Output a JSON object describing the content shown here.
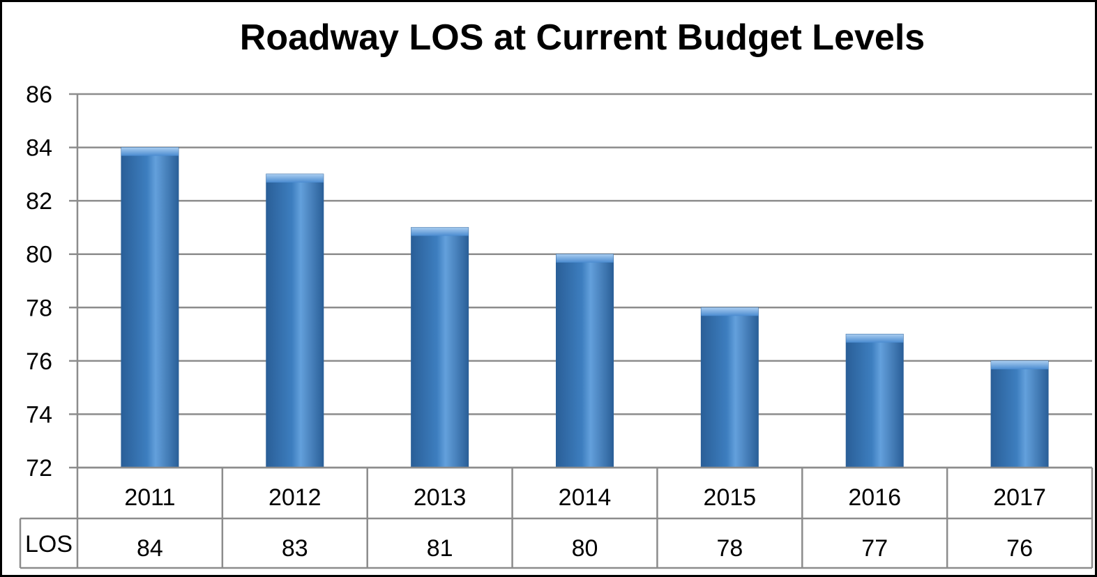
{
  "chart_data": {
    "type": "bar",
    "title": "Roadway LOS at Current Budget Levels",
    "categories": [
      "2011",
      "2012",
      "2013",
      "2014",
      "2015",
      "2016",
      "2017"
    ],
    "series": [
      {
        "name": "LOS",
        "values": [
          84,
          83,
          81,
          80,
          78,
          77,
          76
        ]
      }
    ],
    "ylim": [
      72,
      86
    ],
    "yticks": [
      72,
      74,
      76,
      78,
      80,
      82,
      84,
      86
    ],
    "grid": true,
    "data_table": true,
    "bar_color": "#3d7ebf",
    "bar_color_light": "#63a0dc",
    "bar_color_dark": "#2a5f98"
  }
}
